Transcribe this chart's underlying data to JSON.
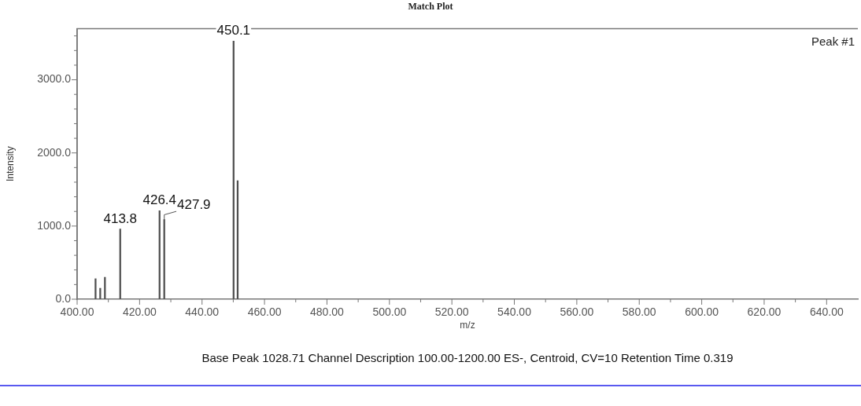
{
  "chart_data": {
    "type": "bar",
    "title": "Match Plot",
    "xlabel": "m/z",
    "ylabel": "Intensity",
    "x": [
      405.9,
      407.4,
      408.9,
      413.8,
      426.4,
      427.9,
      450.1,
      451.4
    ],
    "values": [
      280,
      150,
      300,
      960,
      1210,
      1090,
      3530,
      1620
    ],
    "color": "#505050",
    "xlim": [
      400,
      650
    ],
    "xticks": [
      {
        "value": 400,
        "label": "400.00"
      },
      {
        "value": 410,
        "label": null
      },
      {
        "value": 420,
        "label": "420.00"
      },
      {
        "value": 430,
        "label": null
      },
      {
        "value": 440,
        "label": "440.00"
      },
      {
        "value": 450,
        "label": null
      },
      {
        "value": 460,
        "label": "460.00"
      },
      {
        "value": 470,
        "label": null
      },
      {
        "value": 480,
        "label": "480.00"
      },
      {
        "value": 490,
        "label": null
      },
      {
        "value": 500,
        "label": "500.00"
      },
      {
        "value": 510,
        "label": null
      },
      {
        "value": 520,
        "label": "520.00"
      },
      {
        "value": 530,
        "label": null
      },
      {
        "value": 540,
        "label": "540.00"
      },
      {
        "value": 550,
        "label": null
      },
      {
        "value": 560,
        "label": "560.00"
      },
      {
        "value": 570,
        "label": null
      },
      {
        "value": 580,
        "label": "580.00"
      },
      {
        "value": 590,
        "label": null
      },
      {
        "value": 600,
        "label": "600.00"
      },
      {
        "value": 610,
        "label": null
      },
      {
        "value": 620,
        "label": "620.00"
      },
      {
        "value": 630,
        "label": null
      },
      {
        "value": 640,
        "label": "640.00"
      }
    ],
    "ylim": [
      0,
      3700
    ],
    "yticks": [
      {
        "value": 0,
        "label": "0.0"
      },
      {
        "value": 200,
        "label": null
      },
      {
        "value": 400,
        "label": null
      },
      {
        "value": 600,
        "label": null
      },
      {
        "value": 800,
        "label": null
      },
      {
        "value": 1000,
        "label": "1000.0"
      },
      {
        "value": 1200,
        "label": null
      },
      {
        "value": 1400,
        "label": null
      },
      {
        "value": 1600,
        "label": null
      },
      {
        "value": 1800,
        "label": null
      },
      {
        "value": 2000,
        "label": "2000.0"
      },
      {
        "value": 2200,
        "label": null
      },
      {
        "value": 2400,
        "label": null
      },
      {
        "value": 2600,
        "label": null
      },
      {
        "value": 2800,
        "label": null
      },
      {
        "value": 3000,
        "label": "3000.0"
      },
      {
        "value": 3200,
        "label": null
      },
      {
        "value": 3400,
        "label": null
      },
      {
        "value": 3600,
        "label": null
      }
    ],
    "grid": false,
    "annotations": [
      {
        "text": "413.8",
        "x": 413.8,
        "y": 960
      },
      {
        "text": "426.4",
        "x": 426.4,
        "y": 1210
      },
      {
        "text": "427.9",
        "x": 427.9,
        "y": 1090
      },
      {
        "text": "450.1",
        "x": 450.1,
        "y": 3530
      },
      "Peak #1",
      "Base Peak 1028.71 Channel Description 100.00-1200.00 ES-, Centroid, CV=10 Retention Time 0.319"
    ]
  }
}
